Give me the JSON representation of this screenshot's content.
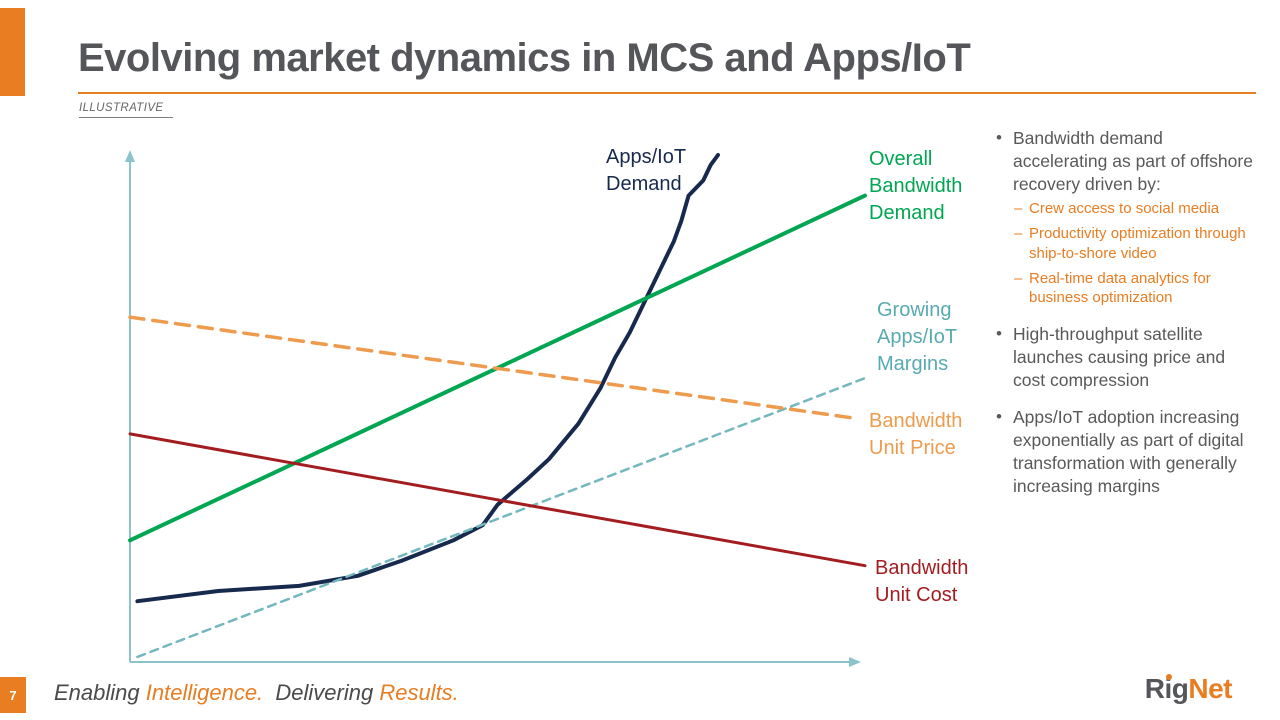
{
  "slide": {
    "title": "Evolving market dynamics in MCS and Apps/IoT",
    "tag": "ILLUSTRATIVE",
    "accent_color": "#E87D22",
    "page_number": "7",
    "footer": {
      "part1": "Enabling ",
      "part2": "Intelligence.",
      "part3": "  Delivering ",
      "part4": "Results."
    },
    "logo": {
      "part1": "Rig",
      "part2": "Net"
    }
  },
  "chart_data": {
    "type": "line",
    "title": "",
    "xlabel": "",
    "ylabel": "",
    "axes_note": "Conceptual illustrative chart: unlabeled axes with arrowheads (x = time, y = level); values are relative 0-100 estimates",
    "axis_color": "#8AC4CA",
    "x_range": [
      0,
      100
    ],
    "y_range": [
      0,
      100
    ],
    "grid": false,
    "series": [
      {
        "name": "Apps/IoT Demand",
        "label": "Apps/IoT\nDemand",
        "color": "#17294D",
        "style": "solid",
        "width": 4,
        "shape": "exponential-growth",
        "points": [
          [
            1,
            12
          ],
          [
            12,
            14
          ],
          [
            23,
            15
          ],
          [
            31,
            17
          ],
          [
            37,
            20
          ],
          [
            44,
            24
          ],
          [
            48,
            27
          ],
          [
            50,
            31
          ],
          [
            54,
            36
          ],
          [
            57,
            40
          ],
          [
            61,
            47
          ],
          [
            64,
            54
          ],
          [
            66,
            60
          ],
          [
            68,
            65
          ],
          [
            70,
            71
          ],
          [
            72,
            77
          ],
          [
            74,
            83
          ],
          [
            75,
            87
          ],
          [
            76,
            92
          ],
          [
            78,
            95
          ],
          [
            79,
            98
          ],
          [
            80,
            100
          ]
        ]
      },
      {
        "name": "Overall Bandwidth Demand",
        "label": "Overall\nBandwidth\nDemand",
        "color": "#00A651",
        "style": "solid",
        "width": 4,
        "shape": "linear-increasing",
        "points": [
          [
            0,
            24
          ],
          [
            100,
            92
          ]
        ]
      },
      {
        "name": "Growing Apps/IoT Margins",
        "label": "Growing\nApps/IoT\nMargins",
        "color": "#72B8BE",
        "label_color": "#58AAB1",
        "style": "dashed",
        "dash": "8,6",
        "width": 2.5,
        "shape": "linear-increasing",
        "points": [
          [
            1,
            1
          ],
          [
            100,
            56
          ]
        ]
      },
      {
        "name": "Bandwidth Unit Price",
        "label": "Bandwidth\nUnit Price",
        "color": "#EE9B4D",
        "style": "dashed",
        "dash": "14,9",
        "width": 3.5,
        "shape": "linear-decreasing",
        "points": [
          [
            0,
            68
          ],
          [
            99,
            48
          ]
        ]
      },
      {
        "name": "Bandwidth Unit Cost",
        "label": "Bandwidth\nUnit Cost",
        "color": "#A31D20",
        "style": "solid",
        "width": 3,
        "shape": "linear-decreasing",
        "points": [
          [
            0,
            45
          ],
          [
            100,
            19
          ]
        ]
      }
    ]
  },
  "right_panel": {
    "bullet_char": "•",
    "dash_char": "–",
    "bullets": [
      {
        "text": "Bandwidth demand accelerating as part of offshore recovery driven by:",
        "sub": [
          "Crew access to social media",
          "Productivity optimization through ship-to-shore video",
          "Real-time data analytics for business optimization"
        ]
      },
      {
        "text": "High-throughput satellite launches causing price and cost compression",
        "sub": []
      },
      {
        "text": "Apps/IoT adoption increasing exponentially as part of digital transformation with generally increasing margins",
        "sub": []
      }
    ]
  }
}
